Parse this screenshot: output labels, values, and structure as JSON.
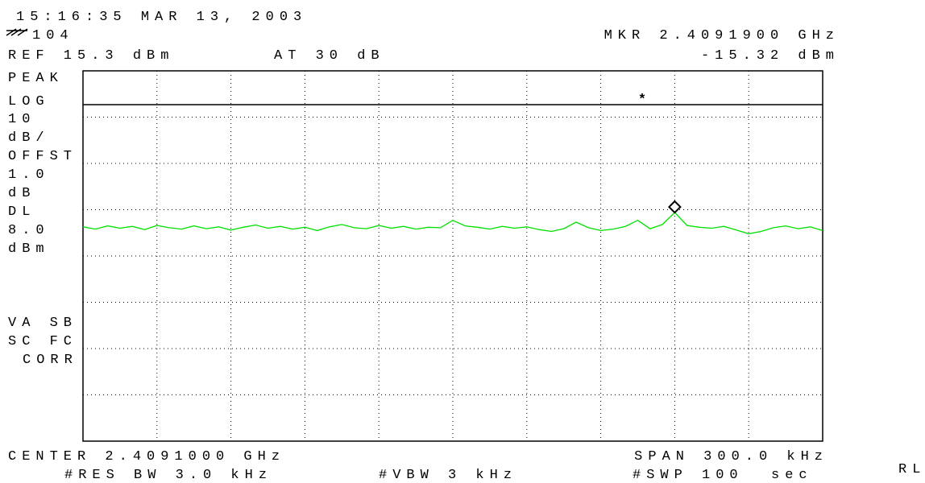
{
  "header": {
    "datetime": "15:16:35 MAR 13, 2003",
    "instrument": "104",
    "reference": "REF 15.3 dBm",
    "attenuation": "AT 30 dB",
    "marker_freq": "MKR 2.4091900 GHz",
    "marker_level": "-15.32 dBm"
  },
  "side_labels": [
    "PEAK",
    "LOG",
    "10",
    "dB/",
    "OFFST",
    "1.0",
    "dB",
    "DL",
    "8.0",
    "dBm",
    "VA SB",
    "SC FC",
    "CORR"
  ],
  "footer": {
    "center": "CENTER 2.4091000 GHz",
    "span": "SPAN 300.0 kHz",
    "rbw": "#RES BW 3.0 kHz",
    "vbw": "#VBW 3 kHz",
    "sweep": "#SWP 100  sec",
    "rl": "RL"
  },
  "chart_data": {
    "type": "line",
    "xlim": [
      2.40895,
      2.40925
    ],
    "ylim": [
      -64.7,
      15.3
    ],
    "xticks": [
      2.40895,
      2.40898,
      2.40901,
      2.40904,
      2.40907,
      2.4091,
      2.40913,
      2.40916,
      2.40919,
      2.40922,
      2.40925
    ],
    "yticks": [
      15.3,
      5.3,
      -4.7,
      -14.7,
      -24.7,
      -34.7,
      -44.7,
      -54.7,
      -64.7
    ],
    "grid": true,
    "display_line": 8.0,
    "display_line_symbol": "*",
    "marker": {
      "x": 2.40919,
      "y": -15.32
    },
    "x": [
      2.40895,
      2.408955,
      2.40896,
      2.408965,
      2.40897,
      2.408975,
      2.40898,
      2.408985,
      2.40899,
      2.408995,
      2.409,
      2.409005,
      2.40901,
      2.409015,
      2.40902,
      2.409025,
      2.40903,
      2.409035,
      2.40904,
      2.409045,
      2.40905,
      2.409055,
      2.40906,
      2.409065,
      2.40907,
      2.409075,
      2.40908,
      2.409085,
      2.40909,
      2.409095,
      2.4091,
      2.409105,
      2.40911,
      2.409115,
      2.40912,
      2.409125,
      2.40913,
      2.409135,
      2.40914,
      2.409145,
      2.40915,
      2.409155,
      2.40916,
      2.409165,
      2.40917,
      2.409175,
      2.40918,
      2.409185,
      2.40919,
      2.409195,
      2.4092,
      2.409205,
      2.40921,
      2.409215,
      2.40922,
      2.409225,
      2.40923,
      2.409235,
      2.40924,
      2.409245,
      2.40925
    ],
    "series": [
      {
        "color": "#00e000",
        "values": [
          -18.4,
          -18.9,
          -18.2,
          -18.7,
          -18.3,
          -19.0,
          -18.1,
          -18.6,
          -18.9,
          -18.2,
          -18.8,
          -18.4,
          -19.1,
          -18.5,
          -18.0,
          -18.7,
          -18.3,
          -18.9,
          -18.5,
          -19.2,
          -18.4,
          -17.9,
          -18.6,
          -18.8,
          -18.1,
          -18.7,
          -18.3,
          -18.9,
          -18.5,
          -18.6,
          -17.0,
          -18.2,
          -18.5,
          -18.9,
          -18.3,
          -18.7,
          -18.4,
          -19.0,
          -19.4,
          -18.8,
          -17.4,
          -18.6,
          -19.2,
          -18.9,
          -18.3,
          -17.0,
          -18.8,
          -17.9,
          -15.3,
          -18.1,
          -18.5,
          -18.7,
          -18.3,
          -19.1,
          -19.9,
          -19.4,
          -18.6,
          -18.2,
          -18.8,
          -18.4,
          -19.2
        ]
      }
    ]
  }
}
